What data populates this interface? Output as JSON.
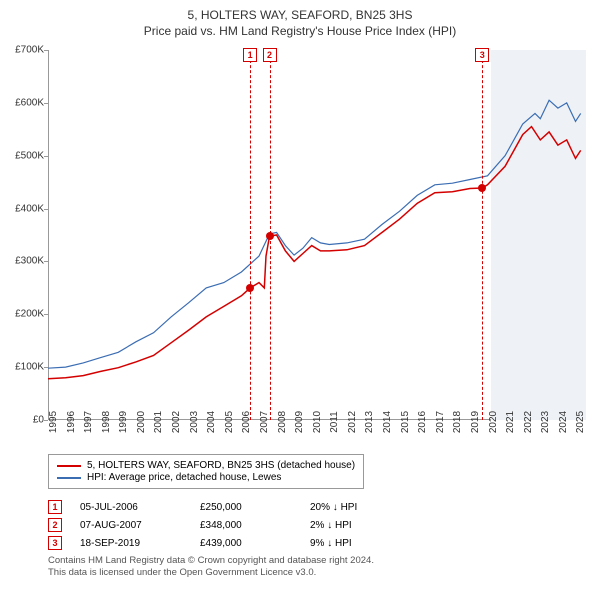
{
  "title": "5, HOLTERS WAY, SEAFORD, BN25 3HS",
  "subtitle": "Price paid vs. HM Land Registry's House Price Index (HPI)",
  "chart": {
    "type": "line",
    "background_color": "#ffffff",
    "axis_color": "#999999",
    "text_color": "#333333",
    "y": {
      "min": 0,
      "max": 700000,
      "step": 100000,
      "labels": [
        "£0",
        "£100K",
        "£200K",
        "£300K",
        "£400K",
        "£500K",
        "£600K",
        "£700K"
      ]
    },
    "x": {
      "min": 1995,
      "max": 2025.6,
      "ticks": [
        1995,
        1996,
        1997,
        1998,
        1999,
        2000,
        2001,
        2002,
        2003,
        2004,
        2005,
        2006,
        2007,
        2008,
        2009,
        2010,
        2011,
        2012,
        2013,
        2014,
        2015,
        2016,
        2017,
        2018,
        2019,
        2020,
        2021,
        2022,
        2023,
        2024,
        2025
      ]
    },
    "shade": {
      "from": 2020.2,
      "to": 2025.6,
      "color": "#eef2f7"
    },
    "series": [
      {
        "name": "5, HOLTERS WAY, SEAFORD, BN25 3HS (detached house)",
        "color": "#d40000",
        "width": 1.5,
        "points": [
          [
            1995,
            78000
          ],
          [
            1996,
            80000
          ],
          [
            1997,
            84000
          ],
          [
            1998,
            92000
          ],
          [
            1999,
            99000
          ],
          [
            2000,
            110000
          ],
          [
            2001,
            122000
          ],
          [
            2002,
            146000
          ],
          [
            2003,
            170000
          ],
          [
            2004,
            195000
          ],
          [
            2005,
            215000
          ],
          [
            2006,
            235000
          ],
          [
            2006.5,
            250000
          ],
          [
            2007,
            260000
          ],
          [
            2007.3,
            250000
          ],
          [
            2007.4,
            310000
          ],
          [
            2007.6,
            348000
          ],
          [
            2008,
            350000
          ],
          [
            2008.5,
            320000
          ],
          [
            2009,
            300000
          ],
          [
            2009.5,
            315000
          ],
          [
            2010,
            330000
          ],
          [
            2010.5,
            320000
          ],
          [
            2011,
            320000
          ],
          [
            2012,
            322000
          ],
          [
            2013,
            330000
          ],
          [
            2014,
            355000
          ],
          [
            2015,
            380000
          ],
          [
            2016,
            410000
          ],
          [
            2017,
            430000
          ],
          [
            2018,
            432000
          ],
          [
            2019,
            438000
          ],
          [
            2019.7,
            439000
          ],
          [
            2020,
            445000
          ],
          [
            2021,
            480000
          ],
          [
            2022,
            540000
          ],
          [
            2022.5,
            555000
          ],
          [
            2023,
            530000
          ],
          [
            2023.5,
            545000
          ],
          [
            2024,
            520000
          ],
          [
            2024.5,
            530000
          ],
          [
            2025,
            495000
          ],
          [
            2025.3,
            510000
          ]
        ]
      },
      {
        "name": "HPI: Average price, detached house, Lewes",
        "color": "#3b6db3",
        "width": 1.2,
        "points": [
          [
            1995,
            98000
          ],
          [
            1996,
            100000
          ],
          [
            1997,
            108000
          ],
          [
            1998,
            118000
          ],
          [
            1999,
            128000
          ],
          [
            2000,
            148000
          ],
          [
            2001,
            165000
          ],
          [
            2002,
            195000
          ],
          [
            2003,
            222000
          ],
          [
            2004,
            250000
          ],
          [
            2005,
            260000
          ],
          [
            2006,
            280000
          ],
          [
            2007,
            310000
          ],
          [
            2007.6,
            352000
          ],
          [
            2008,
            355000
          ],
          [
            2008.5,
            330000
          ],
          [
            2009,
            312000
          ],
          [
            2009.5,
            325000
          ],
          [
            2010,
            345000
          ],
          [
            2010.5,
            335000
          ],
          [
            2011,
            332000
          ],
          [
            2012,
            335000
          ],
          [
            2013,
            342000
          ],
          [
            2014,
            370000
          ],
          [
            2015,
            395000
          ],
          [
            2016,
            425000
          ],
          [
            2017,
            445000
          ],
          [
            2018,
            448000
          ],
          [
            2019,
            455000
          ],
          [
            2020,
            462000
          ],
          [
            2021,
            500000
          ],
          [
            2022,
            560000
          ],
          [
            2022.7,
            580000
          ],
          [
            2023,
            570000
          ],
          [
            2023.5,
            605000
          ],
          [
            2024,
            590000
          ],
          [
            2024.5,
            600000
          ],
          [
            2025,
            565000
          ],
          [
            2025.3,
            580000
          ]
        ]
      }
    ],
    "sale_markers": [
      {
        "n": "1",
        "x": 2006.5,
        "y": 250000,
        "color": "#d40000"
      },
      {
        "n": "2",
        "x": 2007.6,
        "y": 348000,
        "color": "#d40000"
      },
      {
        "n": "3",
        "x": 2019.7,
        "y": 439000,
        "color": "#d40000"
      }
    ]
  },
  "legend": [
    {
      "color": "#d40000",
      "text": "5, HOLTERS WAY, SEAFORD, BN25 3HS (detached house)"
    },
    {
      "color": "#3b6db3",
      "text": "HPI: Average price, detached house, Lewes"
    }
  ],
  "sales": [
    {
      "n": "1",
      "color": "#d40000",
      "date": "05-JUL-2006",
      "price": "£250,000",
      "delta": "20% ↓ HPI"
    },
    {
      "n": "2",
      "color": "#d40000",
      "date": "07-AUG-2007",
      "price": "£348,000",
      "delta": "2% ↓ HPI"
    },
    {
      "n": "3",
      "color": "#d40000",
      "date": "18-SEP-2019",
      "price": "£439,000",
      "delta": "9% ↓ HPI"
    }
  ],
  "footer_line1": "Contains HM Land Registry data © Crown copyright and database right 2024.",
  "footer_line2": "This data is licensed under the Open Government Licence v3.0."
}
